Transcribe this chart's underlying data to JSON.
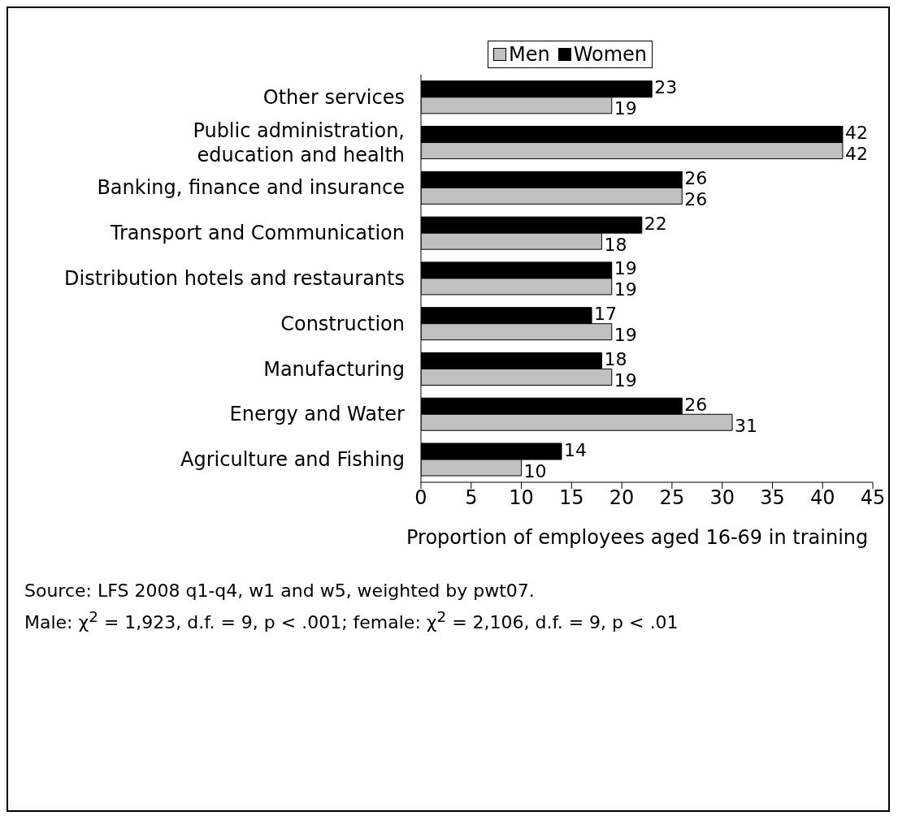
{
  "chart_data": {
    "type": "bar",
    "orientation": "horizontal",
    "xlabel": "Proportion of employees aged 16-69 in training",
    "categories": [
      "Other services",
      "Public administration, education and health",
      "Banking, finance and insurance",
      "Transport and Communication",
      "Distribution hotels and restaurants",
      "Construction",
      "Manufacturing",
      "Energy and Water",
      "Agriculture and Fishing"
    ],
    "series": [
      {
        "name": "Men",
        "color": "#c0c0c0",
        "values": [
          19,
          42,
          26,
          18,
          19,
          19,
          19,
          31,
          10
        ]
      },
      {
        "name": "Women",
        "color": "#000000",
        "values": [
          23,
          42,
          26,
          22,
          19,
          17,
          18,
          26,
          14
        ]
      }
    ],
    "xlim": [
      0,
      45
    ],
    "xticks": [
      0,
      5,
      10,
      15,
      20,
      25,
      30,
      35,
      40,
      45
    ],
    "data_labels": true,
    "legend": "top",
    "grid": false,
    "annotations": [
      "Source: LFS 2008 q1-q4, w1 and w5, weighted by pwt07.",
      "Male: χ$^{2}$ = 1,923, d.f. = 9, p < .001; female: χ$^{2}$ = 2,106, d.f. = 9, p < .01"
    ]
  }
}
